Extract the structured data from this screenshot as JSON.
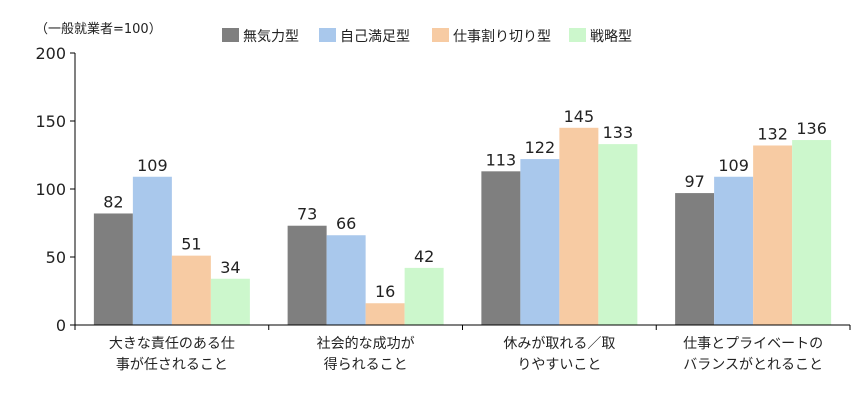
{
  "chart_data": {
    "type": "bar",
    "note": "（一般就業者=100）",
    "categories": [
      [
        "大きな責任のある仕",
        "事が任されること"
      ],
      [
        "社会的な成功が",
        "得られること"
      ],
      [
        "休みが取れる／取",
        "りやすいこと"
      ],
      [
        "仕事とプライベートの",
        "バランスがとれること"
      ]
    ],
    "series": [
      {
        "name": "無気力型",
        "color": "#7f7f7f",
        "values": [
          82,
          73,
          113,
          97
        ]
      },
      {
        "name": "自己満足型",
        "color": "#a9c8ec",
        "values": [
          109,
          66,
          122,
          109
        ]
      },
      {
        "name": "仕事割り切り型",
        "color": "#f7cba3",
        "values": [
          51,
          16,
          145,
          132
        ]
      },
      {
        "name": "戦略型",
        "color": "#ccf7cc",
        "values": [
          34,
          42,
          133,
          136
        ]
      }
    ],
    "ylim": [
      0,
      200
    ],
    "yticks": [
      0,
      50,
      100,
      150,
      200
    ],
    "legend_position": "top",
    "grid": false
  }
}
